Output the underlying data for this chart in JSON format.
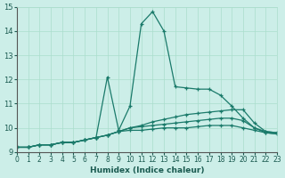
{
  "xlabel": "Humidex (Indice chaleur)",
  "ylabel": "",
  "bg_color": "#cceee8",
  "grid_color": "#aaddcc",
  "line_color": "#1a7a6a",
  "xlim": [
    0,
    23
  ],
  "ylim": [
    9,
    15
  ],
  "xticks": [
    0,
    1,
    2,
    3,
    4,
    5,
    6,
    7,
    8,
    9,
    10,
    11,
    12,
    13,
    14,
    15,
    16,
    17,
    18,
    19,
    20,
    21,
    22,
    23
  ],
  "yticks": [
    9,
    10,
    11,
    12,
    13,
    14,
    15
  ],
  "lines": [
    {
      "x": [
        0,
        1,
        2,
        3,
        4,
        5,
        6,
        7,
        8,
        9,
        10,
        11,
        12,
        13,
        14,
        15,
        16,
        17,
        18,
        19,
        20,
        21,
        22,
        23
      ],
      "y": [
        9.2,
        9.2,
        9.3,
        9.3,
        9.4,
        9.4,
        9.5,
        9.6,
        12.1,
        9.9,
        10.9,
        14.3,
        14.8,
        14.0,
        11.7,
        11.65,
        11.6,
        11.6,
        11.35,
        10.9,
        10.4,
        10.0,
        9.85,
        9.8
      ]
    },
    {
      "x": [
        0,
        1,
        2,
        3,
        4,
        5,
        6,
        7,
        8,
        9,
        10,
        11,
        12,
        13,
        14,
        15,
        16,
        17,
        18,
        19,
        20,
        21,
        22,
        23
      ],
      "y": [
        9.2,
        9.2,
        9.3,
        9.3,
        9.4,
        9.4,
        9.5,
        9.6,
        9.7,
        9.85,
        10.0,
        10.1,
        10.25,
        10.35,
        10.45,
        10.55,
        10.6,
        10.65,
        10.7,
        10.75,
        10.75,
        10.2,
        9.85,
        9.8
      ]
    },
    {
      "x": [
        0,
        1,
        2,
        3,
        4,
        5,
        6,
        7,
        8,
        9,
        10,
        11,
        12,
        13,
        14,
        15,
        16,
        17,
        18,
        19,
        20,
        21,
        22,
        23
      ],
      "y": [
        9.2,
        9.2,
        9.3,
        9.3,
        9.4,
        9.4,
        9.5,
        9.6,
        9.7,
        9.85,
        10.0,
        10.05,
        10.1,
        10.15,
        10.2,
        10.25,
        10.3,
        10.35,
        10.4,
        10.4,
        10.3,
        10.0,
        9.8,
        9.75
      ]
    },
    {
      "x": [
        0,
        1,
        2,
        3,
        4,
        5,
        6,
        7,
        8,
        9,
        10,
        11,
        12,
        13,
        14,
        15,
        16,
        17,
        18,
        19,
        20,
        21,
        22,
        23
      ],
      "y": [
        9.2,
        9.2,
        9.3,
        9.3,
        9.4,
        9.4,
        9.5,
        9.6,
        9.7,
        9.85,
        9.9,
        9.9,
        9.95,
        10.0,
        10.0,
        10.0,
        10.05,
        10.1,
        10.1,
        10.1,
        10.0,
        9.9,
        9.8,
        9.75
      ]
    }
  ]
}
